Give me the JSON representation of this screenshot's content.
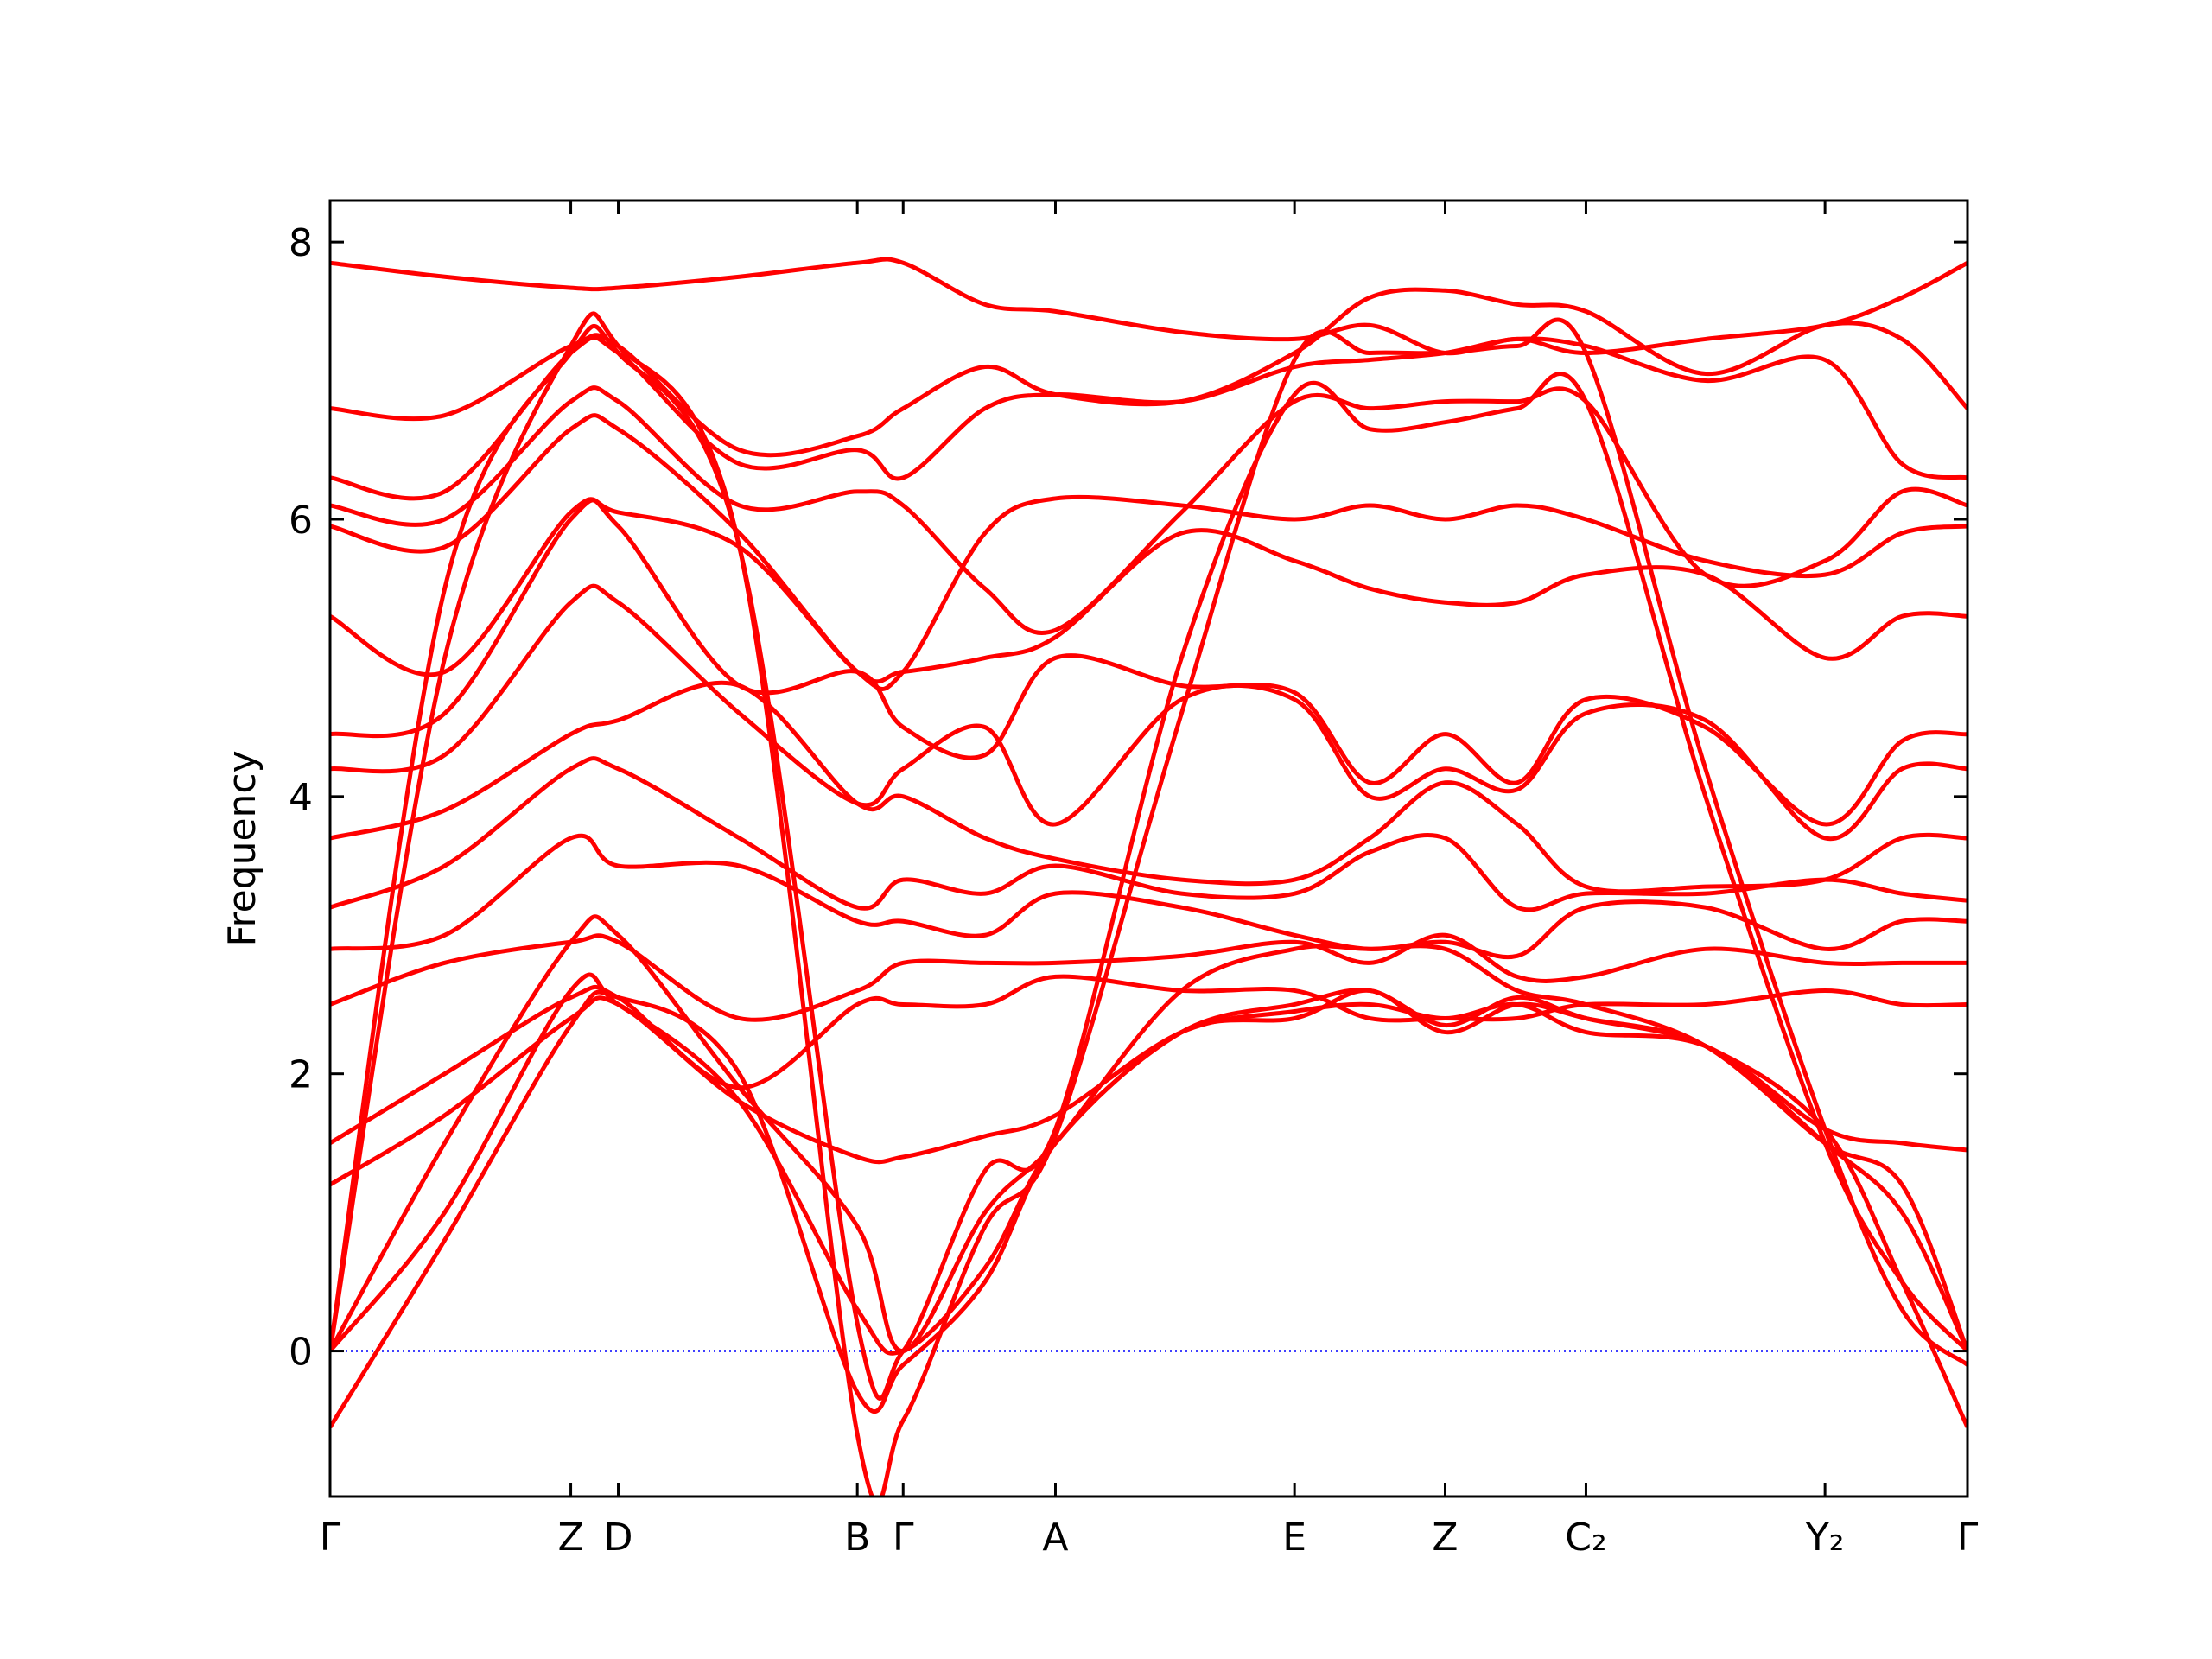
{
  "chart_data": {
    "type": "band-structure",
    "ylabel": "Frequency",
    "color": "#ff0000",
    "zero_line": 0,
    "zero_line_color": "#0000ff",
    "xlim": [
      0,
      1
    ],
    "xticks": [
      {
        "value": 0,
        "label": "Γ"
      },
      {
        "value": 0.147,
        "label": "Z"
      },
      {
        "value": 0.176,
        "label": "D"
      },
      {
        "value": 0.322,
        "label": "B"
      },
      {
        "value": 0.35,
        "label": "Γ"
      },
      {
        "value": 0.443,
        "label": "A"
      },
      {
        "value": 0.589,
        "label": "E"
      },
      {
        "value": 0.681,
        "label": "Z"
      },
      {
        "value": 0.767,
        "label": "C₂"
      },
      {
        "value": 0.913,
        "label": "Y₂"
      },
      {
        "value": 1,
        "label": "Γ"
      }
    ],
    "ylim": [
      -1.05,
      8.3
    ],
    "yticks": [
      0,
      2,
      4,
      6,
      8
    ],
    "x": [
      0,
      0.07,
      0.147,
      0.176,
      0.25,
      0.322,
      0.35,
      0.4,
      0.443,
      0.52,
      0.589,
      0.635,
      0.681,
      0.725,
      0.767,
      0.84,
      0.913,
      0.96,
      1
    ],
    "bands": [
      [
        7.85,
        7.75,
        7.67,
        7.67,
        7.75,
        7.85,
        7.85,
        7.55,
        7.5,
        7.35,
        7.3,
        7.4,
        7.2,
        7.3,
        7.2,
        7.3,
        7.4,
        7.6,
        7.85
      ],
      [
        6.8,
        6.75,
        7.25,
        7.25,
        6.5,
        6.6,
        6.8,
        7.1,
        6.9,
        6.85,
        7.2,
        7.6,
        7.65,
        7.55,
        7.5,
        7.05,
        7.4,
        7.3,
        6.8
      ],
      [
        6.3,
        6.2,
        7.2,
        7.2,
        6.4,
        6.5,
        6.3,
        6.8,
        6.9,
        6.85,
        7.1,
        7.15,
        7.2,
        7.3,
        7.25,
        7.0,
        7.15,
        6.4,
        6.3
      ],
      [
        6.1,
        6.0,
        6.85,
        6.85,
        6.1,
        6.2,
        6.1,
        5.5,
        5.2,
        6.05,
        6.85,
        6.8,
        6.85,
        6.85,
        6.85,
        5.6,
        5.7,
        6.2,
        6.1
      ],
      [
        5.95,
        5.8,
        6.65,
        6.65,
        5.9,
        4.9,
        4.9,
        5.9,
        6.15,
        6.1,
        6.0,
        6.1,
        6.0,
        6.1,
        6.0,
        5.7,
        5.6,
        5.9,
        5.95
      ],
      [
        5.3,
        4.9,
        6.05,
        6.05,
        5.8,
        4.9,
        4.9,
        5.0,
        5.15,
        5.9,
        5.7,
        5.5,
        5.4,
        5.4,
        5.6,
        5.6,
        5.0,
        5.3,
        5.3
      ],
      [
        4.45,
        4.6,
        6.0,
        5.95,
        4.8,
        4.9,
        4.5,
        4.3,
        5.0,
        4.8,
        4.75,
        4.1,
        4.45,
        4.1,
        4.7,
        4.5,
        3.8,
        4.4,
        4.45
      ],
      [
        4.2,
        4.3,
        5.4,
        5.4,
        4.6,
        3.95,
        4.2,
        4.5,
        3.8,
        4.7,
        4.7,
        4.0,
        4.2,
        4.05,
        4.6,
        4.55,
        3.7,
        4.2,
        4.2
      ],
      [
        3.7,
        3.9,
        4.45,
        4.55,
        4.8,
        3.95,
        4.0,
        3.7,
        3.55,
        3.4,
        3.4,
        3.7,
        4.1,
        3.8,
        3.35,
        3.35,
        3.4,
        3.7,
        3.7
      ],
      [
        3.2,
        3.5,
        4.2,
        4.2,
        3.7,
        3.2,
        3.4,
        3.3,
        3.5,
        3.3,
        3.3,
        3.6,
        3.7,
        3.2,
        3.3,
        3.3,
        3.4,
        3.3,
        3.25
      ],
      [
        2.9,
        3.0,
        3.7,
        3.5,
        3.5,
        3.1,
        3.1,
        3.0,
        3.3,
        3.2,
        3.0,
        2.9,
        2.95,
        2.85,
        3.2,
        3.2,
        2.9,
        3.1,
        3.1
      ],
      [
        2.5,
        2.8,
        2.95,
        2.95,
        2.4,
        2.6,
        2.8,
        2.8,
        2.8,
        2.85,
        2.95,
        2.8,
        3.0,
        2.7,
        2.7,
        2.9,
        2.8,
        2.8,
        2.8
      ],
      [
        1.5,
        2.0,
        2.55,
        2.55,
        1.9,
        2.5,
        2.5,
        2.5,
        2.7,
        2.6,
        2.6,
        2.4,
        2.4,
        2.4,
        2.5,
        2.5,
        2.6,
        2.5,
        2.5
      ],
      [
        1.2,
        1.7,
        2.4,
        2.5,
        1.8,
        1.4,
        1.4,
        1.55,
        1.7,
        2.3,
        2.45,
        2.5,
        2.4,
        2.5,
        2.3,
        2.2,
        1.6,
        1.5,
        1.45
      ],
      [
        0,
        1.5,
        2.95,
        3.0,
        1.9,
        0.9,
        0,
        1.0,
        1.5,
        2.6,
        2.9,
        2.9,
        2.9,
        2.6,
        2.5,
        2.2,
        1.5,
        1.2,
        0
      ],
      [
        0,
        1.0,
        2.6,
        2.5,
        1.8,
        0.3,
        0,
        0.6,
        1.5,
        2.3,
        2.4,
        2.6,
        2.3,
        2.5,
        2.4,
        2.2,
        1.5,
        1.0,
        0
      ],
      [
        -0.55,
        0.8,
        2.35,
        2.55,
        2.0,
        -0.3,
        -0.1,
        0.5,
        1.5,
        2.3,
        2.5,
        2.6,
        2.35,
        2.55,
        2.4,
        2.2,
        1.6,
        0.5,
        -0.55
      ],
      [
        0,
        5.5,
        7.2,
        7.2,
        5.8,
        0.2,
        0,
        1.3,
        1.6,
        5.0,
        6.9,
        6.65,
        6.7,
        6.8,
        6.85,
        4.0,
        1.5,
        0.5,
        0
      ],
      [
        0,
        5.0,
        7.25,
        7.25,
        5.8,
        -0.6,
        -0.5,
        0.9,
        1.55,
        4.6,
        7.15,
        7.2,
        7.2,
        7.25,
        7.2,
        4.2,
        1.6,
        0.3,
        -0.1
      ]
    ]
  }
}
